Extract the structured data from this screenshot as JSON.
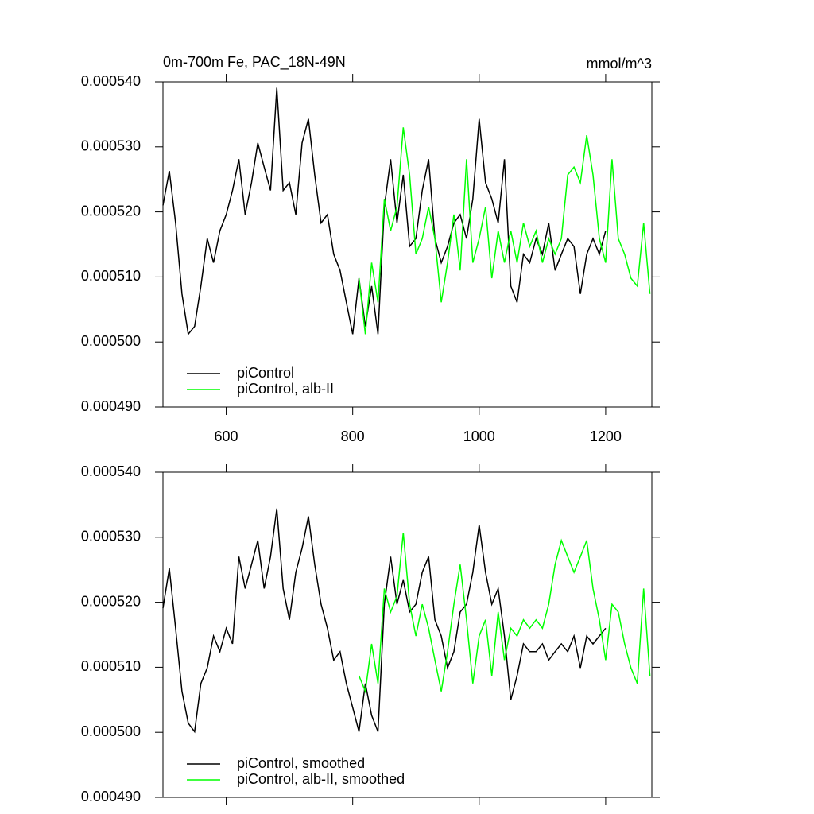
{
  "chart_data": [
    {
      "type": "line",
      "title": "0m-700m Fe, PAC_18N-49N",
      "units_label": "mmol/m^3",
      "xlim": [
        500,
        1273
      ],
      "xticks": [
        600,
        800,
        1000,
        1200
      ],
      "show_xtick_labels": true,
      "ylim": [
        0.00049,
        0.00054
      ],
      "yticks": [
        {
          "value": 0.00049,
          "label": "0.000490"
        },
        {
          "value": 0.0005,
          "label": "0.000500"
        },
        {
          "value": 0.00051,
          "label": "0.000510"
        },
        {
          "value": 0.00052,
          "label": "0.000520"
        },
        {
          "value": 0.00053,
          "label": "0.000530"
        },
        {
          "value": 0.00054,
          "label": "0.000540"
        }
      ],
      "legend": "lower left",
      "series": [
        {
          "name": "piControl",
          "color": "#000000",
          "x": [
            500,
            510,
            520,
            530,
            540,
            550,
            560,
            570,
            580,
            590,
            600,
            610,
            620,
            630,
            640,
            650,
            660,
            670,
            680,
            690,
            700,
            710,
            720,
            730,
            740,
            750,
            760,
            770,
            780,
            790,
            800,
            810,
            820,
            830,
            840,
            850,
            860,
            870,
            880,
            890,
            900,
            910,
            920,
            930,
            940,
            950,
            960,
            970,
            980,
            990,
            1000,
            1010,
            1020,
            1030,
            1040,
            1050,
            1060,
            1070,
            1080,
            1090,
            1100,
            1110,
            1120,
            1130,
            1140,
            1150,
            1160,
            1170,
            1180,
            1190,
            1200
          ],
          "values": [
            0.000521,
            0.0005263,
            0.0005183,
            0.0005074,
            0.0005012,
            0.0005024,
            0.0005086,
            0.0005159,
            0.0005122,
            0.0005171,
            0.0005196,
            0.0005233,
            0.0005281,
            0.0005196,
            0.0005245,
            0.0005306,
            0.0005269,
            0.0005233,
            0.0005391,
            0.0005233,
            0.0005245,
            0.0005196,
            0.0005306,
            0.0005343,
            0.0005257,
            0.0005183,
            0.0005196,
            0.0005135,
            0.000511,
            0.0005061,
            0.0005012,
            0.0005098,
            0.0005024,
            0.0005086,
            0.0005012,
            0.0005208,
            0.0005281,
            0.0005183,
            0.0005257,
            0.0005147,
            0.0005159,
            0.0005233,
            0.0005281,
            0.0005159,
            0.0005122,
            0.0005147,
            0.0005183,
            0.0005196,
            0.0005159,
            0.000522,
            0.0005343,
            0.0005245,
            0.000522,
            0.0005183,
            0.0005281,
            0.0005086,
            0.0005061,
            0.0005135,
            0.0005122,
            0.0005159,
            0.0005135,
            0.0005183,
            0.000511,
            0.0005135,
            0.0005159,
            0.0005147,
            0.0005074,
            0.0005135,
            0.0005159,
            0.0005135,
            0.0005171
          ]
        },
        {
          "name": "piControl, alb-II",
          "color": "#00ff00",
          "x": [
            810,
            820,
            830,
            840,
            850,
            860,
            870,
            880,
            890,
            900,
            910,
            920,
            930,
            940,
            950,
            960,
            970,
            980,
            990,
            1000,
            1010,
            1020,
            1030,
            1040,
            1050,
            1060,
            1070,
            1080,
            1090,
            1100,
            1110,
            1120,
            1130,
            1140,
            1150,
            1160,
            1170,
            1180,
            1190,
            1200,
            1210,
            1220,
            1230,
            1240,
            1250,
            1260,
            1270
          ],
          "values": [
            0.0005098,
            0.0005012,
            0.0005122,
            0.0005061,
            0.000522,
            0.0005171,
            0.0005208,
            0.000533,
            0.0005257,
            0.0005135,
            0.0005159,
            0.0005208,
            0.0005159,
            0.0005061,
            0.0005122,
            0.0005196,
            0.000511,
            0.0005281,
            0.0005122,
            0.0005159,
            0.0005208,
            0.0005098,
            0.0005171,
            0.0005122,
            0.0005171,
            0.0005122,
            0.0005183,
            0.0005147,
            0.0005171,
            0.0005122,
            0.0005159,
            0.0005135,
            0.0005159,
            0.0005257,
            0.0005269,
            0.0005245,
            0.0005318,
            0.0005257,
            0.0005159,
            0.0005122,
            0.0005281,
            0.0005159,
            0.0005135,
            0.0005098,
            0.0005086,
            0.0005183,
            0.0005074
          ]
        }
      ]
    },
    {
      "type": "line",
      "xlim": [
        500,
        1273
      ],
      "xticks": [
        600,
        800,
        1000,
        1200
      ],
      "show_xtick_labels": false,
      "ylim": [
        0.00049,
        0.00054
      ],
      "yticks": [
        {
          "value": 0.00049,
          "label": "0.000490"
        },
        {
          "value": 0.0005,
          "label": "0.000500"
        },
        {
          "value": 0.00051,
          "label": "0.000510"
        },
        {
          "value": 0.00052,
          "label": "0.000520"
        },
        {
          "value": 0.00053,
          "label": "0.000530"
        },
        {
          "value": 0.00054,
          "label": "0.000540"
        }
      ],
      "legend": "lower left",
      "series": [
        {
          "name": "piControl, smoothed",
          "color": "#000000",
          "x": [
            500,
            510,
            520,
            530,
            540,
            550,
            560,
            570,
            580,
            590,
            600,
            610,
            620,
            630,
            640,
            650,
            660,
            670,
            680,
            690,
            700,
            710,
            720,
            730,
            740,
            750,
            760,
            770,
            780,
            790,
            800,
            810,
            820,
            830,
            840,
            850,
            860,
            870,
            880,
            890,
            900,
            910,
            920,
            930,
            940,
            950,
            960,
            970,
            980,
            990,
            1000,
            1010,
            1020,
            1030,
            1040,
            1050,
            1060,
            1070,
            1080,
            1090,
            1100,
            1110,
            1120,
            1130,
            1140,
            1150,
            1160,
            1170,
            1180,
            1190,
            1200
          ],
          "values": [
            0.0005191,
            0.0005252,
            0.000516,
            0.0005063,
            0.0005014,
            0.0005001,
            0.0005075,
            0.0005099,
            0.0005148,
            0.0005124,
            0.000516,
            0.0005136,
            0.000527,
            0.0005221,
            0.0005258,
            0.0005295,
            0.0005221,
            0.000527,
            0.0005344,
            0.0005221,
            0.0005173,
            0.0005246,
            0.0005283,
            0.0005332,
            0.0005258,
            0.0005197,
            0.000516,
            0.0005111,
            0.0005124,
            0.0005075,
            0.0005038,
            0.0005001,
            0.0005075,
            0.0005026,
            0.0005001,
            0.0005197,
            0.000527,
            0.0005197,
            0.0005234,
            0.0005185,
            0.0005197,
            0.0005246,
            0.000527,
            0.0005173,
            0.0005148,
            0.0005099,
            0.0005124,
            0.0005185,
            0.0005197,
            0.0005246,
            0.0005319,
            0.0005246,
            0.0005197,
            0.0005221,
            0.0005148,
            0.000505,
            0.0005087,
            0.0005136,
            0.0005124,
            0.0005124,
            0.0005136,
            0.0005111,
            0.0005124,
            0.0005136,
            0.0005124,
            0.0005148,
            0.0005099,
            0.0005148,
            0.0005136,
            0.0005148,
            0.000516
          ]
        },
        {
          "name": "piControl, alb-II, smoothed",
          "color": "#00ff00",
          "x": [
            810,
            820,
            830,
            840,
            850,
            860,
            870,
            880,
            890,
            900,
            910,
            920,
            930,
            940,
            950,
            960,
            970,
            980,
            990,
            1000,
            1010,
            1020,
            1030,
            1040,
            1050,
            1060,
            1070,
            1080,
            1090,
            1100,
            1110,
            1120,
            1130,
            1140,
            1150,
            1160,
            1170,
            1180,
            1190,
            1200,
            1210,
            1220,
            1230,
            1240,
            1250,
            1260,
            1270
          ],
          "values": [
            0.0005087,
            0.0005063,
            0.0005136,
            0.0005075,
            0.0005221,
            0.0005185,
            0.0005209,
            0.0005307,
            0.0005197,
            0.0005148,
            0.0005197,
            0.000516,
            0.0005111,
            0.0005063,
            0.0005124,
            0.0005197,
            0.0005258,
            0.0005173,
            0.0005075,
            0.0005148,
            0.0005173,
            0.0005087,
            0.0005185,
            0.0005111,
            0.000516,
            0.0005148,
            0.0005173,
            0.000516,
            0.0005173,
            0.000516,
            0.0005197,
            0.0005258,
            0.0005295,
            0.000527,
            0.0005246,
            0.000527,
            0.0005295,
            0.0005221,
            0.0005173,
            0.0005111,
            0.0005197,
            0.0005185,
            0.0005136,
            0.0005099,
            0.0005075,
            0.0005221,
            0.0005087
          ]
        }
      ]
    }
  ]
}
